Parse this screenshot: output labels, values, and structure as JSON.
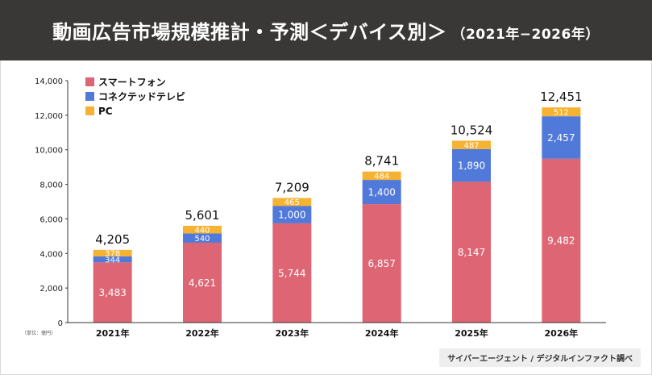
{
  "header": {
    "title": "動画広告市場規模推計・予測＜デバイス別＞",
    "period": "（2021年−2026年）"
  },
  "source": "サイバーエージェント / デジタルインファクト調べ",
  "colors": {
    "header_bg": "#3a3836",
    "smartphone": "#de6674",
    "connected_tv": "#5079d9",
    "pc": "#f6b333"
  },
  "chart_data": {
    "type": "bar",
    "stacked": true,
    "categories": [
      "2021年",
      "2022年",
      "2023年",
      "2024年",
      "2025年",
      "2026年"
    ],
    "series": [
      {
        "name": "スマートフォン",
        "color": "#de6674",
        "values": [
          3483,
          4621,
          5744,
          6857,
          8147,
          9482
        ]
      },
      {
        "name": "コネクテッドテレビ",
        "color": "#5079d9",
        "values": [
          344,
          540,
          1000,
          1400,
          1890,
          2457
        ]
      },
      {
        "name": "PC",
        "color": "#f6b333",
        "values": [
          378,
          440,
          465,
          484,
          487,
          512
        ]
      }
    ],
    "value_labels": [
      [
        "3,483",
        "4,621",
        "5,744",
        "6,857",
        "8,147",
        "9,482"
      ],
      [
        "344",
        "540",
        "1,000",
        "1,400",
        "1,890",
        "2,457"
      ],
      [
        "378",
        "440",
        "465",
        "484",
        "487",
        "512"
      ]
    ],
    "totals": [
      4205,
      5601,
      7209,
      8741,
      10524,
      12451
    ],
    "total_labels": [
      "4,205",
      "5,601",
      "7,209",
      "8,741",
      "10,524",
      "12,451"
    ],
    "ylim": [
      0,
      14000
    ],
    "yticks": [
      0,
      2000,
      4000,
      6000,
      8000,
      10000,
      12000,
      14000
    ],
    "ytick_labels": [
      "0",
      "2,000",
      "4,000",
      "6,000",
      "8,000",
      "10,000",
      "12,000",
      "14,000"
    ],
    "unit_label": "（単位：億円）",
    "legend_position": "top-left"
  }
}
